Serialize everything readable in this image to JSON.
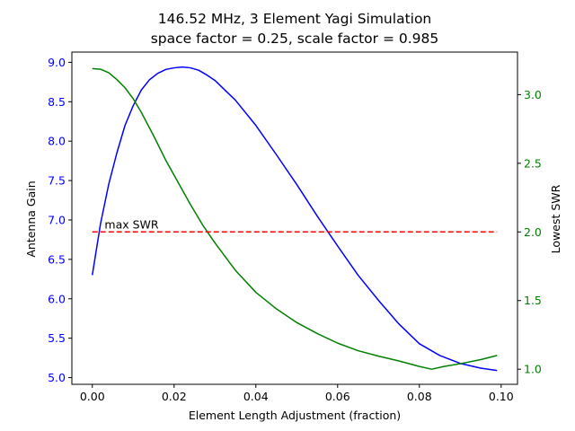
{
  "chart_data": {
    "type": "line",
    "title": "146.52 MHz, 3 Element Yagi Simulation",
    "subtitle": "space factor = 0.25, scale factor = 0.985",
    "xlabel": "Element Length Adjustment (fraction)",
    "ylabel": "Antenna Gain",
    "y2label": "Lowest SWR",
    "xlim": [
      -0.005,
      0.104
    ],
    "ylim": [
      4.915,
      9.13
    ],
    "y2lim": [
      0.89,
      3.31
    ],
    "x_ticks": [
      "0.00",
      "0.02",
      "0.04",
      "0.06",
      "0.08",
      "0.10"
    ],
    "y_ticks": [
      "5.0",
      "5.5",
      "6.0",
      "6.5",
      "7.0",
      "7.5",
      "8.0",
      "8.5",
      "9.0"
    ],
    "y2_ticks": [
      "1.0",
      "1.5",
      "2.0",
      "2.5",
      "3.0"
    ],
    "grid": false,
    "colors": {
      "gain": "#0000ff",
      "swr": "#008000",
      "max_swr": "#ff0000",
      "left_ticks": "#0000ff",
      "right_ticks": "#008000"
    },
    "annotation": "max SWR",
    "series": [
      {
        "axis": "left",
        "color": "#0000ff",
        "x": [
          0,
          0.002,
          0.004,
          0.006,
          0.008,
          0.01,
          0.012,
          0.014,
          0.016,
          0.018,
          0.02,
          0.022,
          0.024,
          0.026,
          0.028,
          0.03,
          0.035,
          0.04,
          0.045,
          0.05,
          0.055,
          0.06,
          0.065,
          0.07,
          0.075,
          0.08,
          0.085,
          0.09,
          0.095,
          0.099
        ],
        "values": [
          6.3,
          6.95,
          7.45,
          7.85,
          8.2,
          8.45,
          8.65,
          8.78,
          8.86,
          8.91,
          8.93,
          8.94,
          8.93,
          8.9,
          8.84,
          8.77,
          8.52,
          8.2,
          7.83,
          7.45,
          7.05,
          6.67,
          6.3,
          5.98,
          5.68,
          5.43,
          5.28,
          5.18,
          5.12,
          5.09
        ]
      },
      {
        "axis": "right",
        "color": "#008000",
        "x": [
          0,
          0.002,
          0.004,
          0.006,
          0.008,
          0.01,
          0.012,
          0.015,
          0.018,
          0.021,
          0.024,
          0.027,
          0.03,
          0.035,
          0.04,
          0.045,
          0.05,
          0.055,
          0.06,
          0.065,
          0.07,
          0.075,
          0.08,
          0.083,
          0.086,
          0.09,
          0.095,
          0.099
        ],
        "values": [
          3.19,
          3.185,
          3.16,
          3.11,
          3.05,
          2.97,
          2.87,
          2.7,
          2.52,
          2.36,
          2.2,
          2.05,
          1.92,
          1.72,
          1.56,
          1.44,
          1.34,
          1.26,
          1.19,
          1.135,
          1.095,
          1.06,
          1.02,
          1.0,
          1.02,
          1.04,
          1.07,
          1.1
        ]
      },
      {
        "axis": "right",
        "color": "#ff0000",
        "dashed": true,
        "x": [
          0,
          0.099
        ],
        "values": [
          2.0,
          2.0
        ]
      }
    ]
  }
}
